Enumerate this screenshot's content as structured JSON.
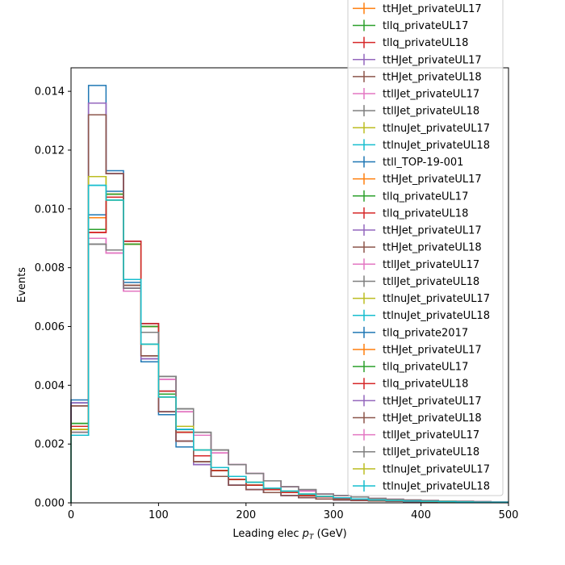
{
  "chart_data": {
    "type": "step-histogram",
    "xlabel_main": "Leading elec ",
    "xlabel_math": "p",
    "xlabel_sub": "T",
    "xlabel_unit": " (GeV)",
    "ylabel": "Events",
    "xlim": [
      0,
      500
    ],
    "ylim": [
      0,
      0.0148
    ],
    "xticks": [
      0,
      100,
      200,
      300,
      400,
      500
    ],
    "yticks": [
      0.0,
      0.002,
      0.004,
      0.006,
      0.008,
      0.01,
      0.012,
      0.014
    ],
    "ytick_labels": [
      "0.000",
      "0.002",
      "0.004",
      "0.006",
      "0.008",
      "0.010",
      "0.012",
      "0.014"
    ],
    "bin_edges": [
      0,
      20,
      40,
      60,
      80,
      100,
      120,
      140,
      160,
      180,
      200,
      220,
      240,
      260,
      280,
      300,
      320,
      340,
      360,
      380,
      400,
      420,
      440,
      460,
      480,
      500
    ],
    "legend_location": "upper right",
    "series": [
      {
        "name": "ttHJet_privateUL17",
        "color": "#ff7f0e",
        "values": [
          0.0025,
          0.0097,
          0.0105,
          0.0088,
          0.006,
          0.0037,
          0.0024,
          0.0016,
          0.0011,
          0.0008,
          0.0006,
          0.00045,
          0.00035,
          0.00025,
          0.0002,
          0.00015,
          0.0001,
          8e-05,
          6e-05,
          5e-05,
          4e-05,
          3e-05,
          2e-05,
          2e-05,
          1e-05
        ]
      },
      {
        "name": "tllq_privateUL17",
        "color": "#2ca02c",
        "values": [
          0.0027,
          0.0093,
          0.0105,
          0.0088,
          0.006,
          0.0037,
          0.0024,
          0.0016,
          0.0011,
          0.0008,
          0.0006,
          0.00045,
          0.00035,
          0.00025,
          0.0002,
          0.00015,
          0.0001,
          8e-05,
          6e-05,
          5e-05,
          4e-05,
          3e-05,
          2e-05,
          2e-05,
          1e-05
        ]
      },
      {
        "name": "tllq_privateUL18",
        "color": "#d62728",
        "values": [
          0.0026,
          0.0092,
          0.0104,
          0.0089,
          0.0061,
          0.0038,
          0.0024,
          0.0016,
          0.0011,
          0.0008,
          0.0006,
          0.00045,
          0.00035,
          0.00025,
          0.0002,
          0.00015,
          0.0001,
          8e-05,
          6e-05,
          5e-05,
          4e-05,
          3e-05,
          2e-05,
          2e-05,
          1e-05
        ]
      },
      {
        "name": "ttHJet_privateUL17",
        "color": "#9467bd",
        "values": [
          0.0034,
          0.0136,
          0.0112,
          0.0073,
          0.0049,
          0.0031,
          0.0021,
          0.0013,
          0.0009,
          0.0006,
          0.00045,
          0.00035,
          0.00025,
          0.00018,
          0.00013,
          0.0001,
          8e-05,
          6e-05,
          5e-05,
          4e-05,
          3e-05,
          2e-05,
          2e-05,
          1e-05,
          1e-05
        ]
      },
      {
        "name": "ttHJet_privateUL18",
        "color": "#8c564b",
        "values": [
          0.0033,
          0.0132,
          0.0112,
          0.0074,
          0.005,
          0.0031,
          0.0021,
          0.0014,
          0.0009,
          0.0006,
          0.00045,
          0.00035,
          0.00025,
          0.00018,
          0.00013,
          0.0001,
          8e-05,
          6e-05,
          5e-05,
          4e-05,
          3e-05,
          2e-05,
          2e-05,
          1e-05,
          1e-05
        ]
      },
      {
        "name": "ttllJet_privateUL17",
        "color": "#e377c2",
        "values": [
          0.0024,
          0.009,
          0.0085,
          0.0072,
          0.0058,
          0.0042,
          0.0031,
          0.0023,
          0.0017,
          0.0013,
          0.001,
          0.00075,
          0.00055,
          0.0004,
          0.0003,
          0.00025,
          0.0002,
          0.00015,
          0.00012,
          0.0001,
          8e-05,
          6e-05,
          5e-05,
          4e-05,
          3e-05
        ]
      },
      {
        "name": "ttllJet_privateUL18",
        "color": "#7f7f7f",
        "values": [
          0.0024,
          0.0088,
          0.0086,
          0.0073,
          0.0058,
          0.0043,
          0.0032,
          0.0024,
          0.0018,
          0.0013,
          0.001,
          0.00075,
          0.00055,
          0.00045,
          0.0003,
          0.00025,
          0.0002,
          0.00015,
          0.00012,
          0.0001,
          8e-05,
          6e-05,
          5e-05,
          4e-05,
          3e-05
        ]
      },
      {
        "name": "ttlnuJet_privateUL17",
        "color": "#bcbd22",
        "values": [
          0.0025,
          0.0111,
          0.0103,
          0.0076,
          0.0054,
          0.0036,
          0.0026,
          0.0018,
          0.0012,
          0.0009,
          0.0007,
          0.0005,
          0.0004,
          0.0003,
          0.00022,
          0.00017,
          0.00013,
          0.0001,
          8e-05,
          6e-05,
          5e-05,
          4e-05,
          3e-05,
          2e-05,
          2e-05
        ]
      },
      {
        "name": "ttlnuJet_privateUL18",
        "color": "#17becf",
        "values": [
          0.0023,
          0.0108,
          0.0103,
          0.0076,
          0.0054,
          0.0036,
          0.0025,
          0.0018,
          0.0012,
          0.0009,
          0.0007,
          0.0005,
          0.0004,
          0.0003,
          0.00022,
          0.00017,
          0.00013,
          0.0001,
          8e-05,
          6e-05,
          5e-05,
          4e-05,
          3e-05,
          2e-05,
          2e-05
        ]
      },
      {
        "name": "ttll_TOP-19-001",
        "color": "#1f77b4",
        "values": [
          0.0035,
          0.0142,
          0.0113,
          0.0075,
          0.0048,
          0.003,
          0.0019,
          0.0013,
          0.0009,
          0.0006,
          0.00045,
          0.00035,
          0.00025,
          0.00018,
          0.00013,
          0.0001,
          8e-05,
          6e-05,
          5e-05,
          4e-05,
          3e-05,
          2e-05,
          2e-05,
          1e-05,
          1e-05
        ]
      },
      {
        "name": "ttHJet_privateUL17",
        "color": "#ff7f0e",
        "values": [
          0.0025,
          0.0097,
          0.0105,
          0.0088,
          0.006,
          0.0037,
          0.0024,
          0.0016,
          0.0011,
          0.0008,
          0.0006,
          0.00045,
          0.00035,
          0.00025,
          0.0002,
          0.00015,
          0.0001,
          8e-05,
          6e-05,
          5e-05,
          4e-05,
          3e-05,
          2e-05,
          2e-05,
          1e-05
        ]
      },
      {
        "name": "tllq_privateUL17",
        "color": "#2ca02c",
        "values": [
          0.0027,
          0.0093,
          0.0105,
          0.0088,
          0.006,
          0.0037,
          0.0024,
          0.0016,
          0.0011,
          0.0008,
          0.0006,
          0.00045,
          0.00035,
          0.00025,
          0.0002,
          0.00015,
          0.0001,
          8e-05,
          6e-05,
          5e-05,
          4e-05,
          3e-05,
          2e-05,
          2e-05,
          1e-05
        ]
      },
      {
        "name": "tllq_privateUL18",
        "color": "#d62728",
        "values": [
          0.0026,
          0.0092,
          0.0104,
          0.0089,
          0.0061,
          0.0038,
          0.0024,
          0.0016,
          0.0011,
          0.0008,
          0.0006,
          0.00045,
          0.00035,
          0.00025,
          0.0002,
          0.00015,
          0.0001,
          8e-05,
          6e-05,
          5e-05,
          4e-05,
          3e-05,
          2e-05,
          2e-05,
          1e-05
        ]
      },
      {
        "name": "ttHJet_privateUL17",
        "color": "#9467bd",
        "values": [
          0.0034,
          0.0136,
          0.0112,
          0.0073,
          0.0049,
          0.0031,
          0.0021,
          0.0013,
          0.0009,
          0.0006,
          0.00045,
          0.00035,
          0.00025,
          0.00018,
          0.00013,
          0.0001,
          8e-05,
          6e-05,
          5e-05,
          4e-05,
          3e-05,
          2e-05,
          2e-05,
          1e-05,
          1e-05
        ]
      },
      {
        "name": "ttHJet_privateUL18",
        "color": "#8c564b",
        "values": [
          0.0033,
          0.0132,
          0.0112,
          0.0074,
          0.005,
          0.0031,
          0.0021,
          0.0014,
          0.0009,
          0.0006,
          0.00045,
          0.00035,
          0.00025,
          0.00018,
          0.00013,
          0.0001,
          8e-05,
          6e-05,
          5e-05,
          4e-05,
          3e-05,
          2e-05,
          2e-05,
          1e-05,
          1e-05
        ]
      },
      {
        "name": "ttllJet_privateUL17",
        "color": "#e377c2",
        "values": [
          0.0024,
          0.009,
          0.0085,
          0.0072,
          0.0058,
          0.0042,
          0.0031,
          0.0023,
          0.0017,
          0.0013,
          0.001,
          0.00075,
          0.00055,
          0.0004,
          0.0003,
          0.00025,
          0.0002,
          0.00015,
          0.00012,
          0.0001,
          8e-05,
          6e-05,
          5e-05,
          4e-05,
          3e-05
        ]
      },
      {
        "name": "ttllJet_privateUL18",
        "color": "#7f7f7f",
        "values": [
          0.0024,
          0.0088,
          0.0086,
          0.0073,
          0.0058,
          0.0043,
          0.0032,
          0.0024,
          0.0018,
          0.0013,
          0.001,
          0.00075,
          0.00055,
          0.00045,
          0.0003,
          0.00025,
          0.0002,
          0.00015,
          0.00012,
          0.0001,
          8e-05,
          6e-05,
          5e-05,
          4e-05,
          3e-05
        ]
      },
      {
        "name": "ttlnuJet_privateUL17",
        "color": "#bcbd22",
        "values": [
          0.0025,
          0.0111,
          0.0103,
          0.0076,
          0.0054,
          0.0036,
          0.0026,
          0.0018,
          0.0012,
          0.0009,
          0.0007,
          0.0005,
          0.0004,
          0.0003,
          0.00022,
          0.00017,
          0.00013,
          0.0001,
          8e-05,
          6e-05,
          5e-05,
          4e-05,
          3e-05,
          2e-05,
          2e-05
        ]
      },
      {
        "name": "ttlnuJet_privateUL18",
        "color": "#17becf",
        "values": [
          0.0023,
          0.0108,
          0.0103,
          0.0076,
          0.0054,
          0.0036,
          0.0025,
          0.0018,
          0.0012,
          0.0009,
          0.0007,
          0.0005,
          0.0004,
          0.0003,
          0.00022,
          0.00017,
          0.00013,
          0.0001,
          8e-05,
          6e-05,
          5e-05,
          4e-05,
          3e-05,
          2e-05,
          2e-05
        ]
      },
      {
        "name": "tllq_private2017",
        "color": "#1f77b4",
        "values": [
          0.0034,
          0.0098,
          0.0106,
          0.0089,
          0.0061,
          0.0038,
          0.0025,
          0.0016,
          0.0011,
          0.0008,
          0.0006,
          0.00045,
          0.00035,
          0.00025,
          0.0002,
          0.00015,
          0.0001,
          8e-05,
          6e-05,
          5e-05,
          4e-05,
          3e-05,
          2e-05,
          2e-05,
          1e-05
        ]
      },
      {
        "name": "ttHJet_privateUL17",
        "color": "#ff7f0e",
        "values": [
          0.0025,
          0.0097,
          0.0105,
          0.0088,
          0.006,
          0.0037,
          0.0024,
          0.0016,
          0.0011,
          0.0008,
          0.0006,
          0.00045,
          0.00035,
          0.00025,
          0.0002,
          0.00015,
          0.0001,
          8e-05,
          6e-05,
          5e-05,
          4e-05,
          3e-05,
          2e-05,
          2e-05,
          1e-05
        ]
      },
      {
        "name": "tllq_privateUL17",
        "color": "#2ca02c",
        "values": [
          0.0027,
          0.0093,
          0.0105,
          0.0088,
          0.006,
          0.0037,
          0.0024,
          0.0016,
          0.0011,
          0.0008,
          0.0006,
          0.00045,
          0.00035,
          0.00025,
          0.0002,
          0.00015,
          0.0001,
          8e-05,
          6e-05,
          5e-05,
          4e-05,
          3e-05,
          2e-05,
          2e-05,
          1e-05
        ]
      },
      {
        "name": "tllq_privateUL18",
        "color": "#d62728",
        "values": [
          0.0026,
          0.0092,
          0.0104,
          0.0089,
          0.0061,
          0.0038,
          0.0024,
          0.0016,
          0.0011,
          0.0008,
          0.0006,
          0.00045,
          0.00035,
          0.00025,
          0.0002,
          0.00015,
          0.0001,
          8e-05,
          6e-05,
          5e-05,
          4e-05,
          3e-05,
          2e-05,
          2e-05,
          1e-05
        ]
      },
      {
        "name": "ttHJet_privateUL17",
        "color": "#9467bd",
        "values": [
          0.0034,
          0.0136,
          0.0112,
          0.0073,
          0.0049,
          0.0031,
          0.0021,
          0.0013,
          0.0009,
          0.0006,
          0.00045,
          0.00035,
          0.00025,
          0.00018,
          0.00013,
          0.0001,
          8e-05,
          6e-05,
          5e-05,
          4e-05,
          3e-05,
          2e-05,
          2e-05,
          1e-05,
          1e-05
        ]
      },
      {
        "name": "ttHJet_privateUL18",
        "color": "#8c564b",
        "values": [
          0.0033,
          0.0132,
          0.0112,
          0.0074,
          0.005,
          0.0031,
          0.0021,
          0.0014,
          0.0009,
          0.0006,
          0.00045,
          0.00035,
          0.00025,
          0.00018,
          0.00013,
          0.0001,
          8e-05,
          6e-05,
          5e-05,
          4e-05,
          3e-05,
          2e-05,
          2e-05,
          1e-05,
          1e-05
        ]
      },
      {
        "name": "ttllJet_privateUL17",
        "color": "#e377c2",
        "values": [
          0.0024,
          0.009,
          0.0085,
          0.0072,
          0.0058,
          0.0042,
          0.0031,
          0.0023,
          0.0017,
          0.0013,
          0.001,
          0.00075,
          0.00055,
          0.0004,
          0.0003,
          0.00025,
          0.0002,
          0.00015,
          0.00012,
          0.0001,
          8e-05,
          6e-05,
          5e-05,
          4e-05,
          3e-05
        ]
      },
      {
        "name": "ttllJet_privateUL18",
        "color": "#7f7f7f",
        "values": [
          0.0024,
          0.0088,
          0.0086,
          0.0073,
          0.0058,
          0.0043,
          0.0032,
          0.0024,
          0.0018,
          0.0013,
          0.001,
          0.00075,
          0.00055,
          0.00045,
          0.0003,
          0.00025,
          0.0002,
          0.00015,
          0.00012,
          0.0001,
          8e-05,
          6e-05,
          5e-05,
          4e-05,
          3e-05
        ]
      },
      {
        "name": "ttlnuJet_privateUL17",
        "color": "#bcbd22",
        "values": [
          0.0025,
          0.0111,
          0.0103,
          0.0076,
          0.0054,
          0.0036,
          0.0026,
          0.0018,
          0.0012,
          0.0009,
          0.0007,
          0.0005,
          0.0004,
          0.0003,
          0.00022,
          0.00017,
          0.00013,
          0.0001,
          8e-05,
          6e-05,
          5e-05,
          4e-05,
          3e-05,
          2e-05,
          2e-05
        ]
      },
      {
        "name": "ttlnuJet_privateUL18",
        "color": "#17becf",
        "values": [
          0.0023,
          0.0108,
          0.0103,
          0.0076,
          0.0054,
          0.0036,
          0.0025,
          0.0018,
          0.0012,
          0.0009,
          0.0007,
          0.0005,
          0.0004,
          0.0003,
          0.00022,
          0.00017,
          0.00013,
          0.0001,
          8e-05,
          6e-05,
          5e-05,
          4e-05,
          3e-05,
          2e-05,
          2e-05
        ]
      }
    ]
  }
}
